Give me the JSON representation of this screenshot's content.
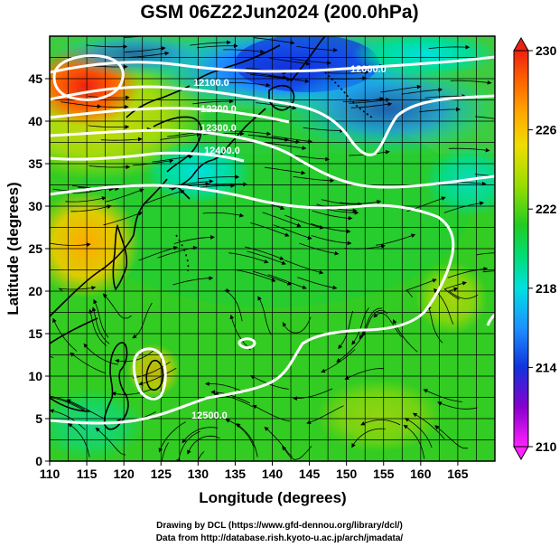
{
  "title": "GSM 06Z22Jun2024 (200.0hPa)",
  "x_axis": {
    "label": "Longitude (degrees)",
    "ticks": [
      "110",
      "115",
      "120",
      "125",
      "130",
      "135",
      "140",
      "145",
      "150",
      "155",
      "160",
      "165"
    ],
    "range": [
      110,
      170
    ]
  },
  "y_axis": {
    "label": "Latitude (degrees)",
    "ticks": [
      "0",
      "5",
      "10",
      "15",
      "20",
      "25",
      "30",
      "35",
      "40",
      "45"
    ],
    "range": [
      0,
      50
    ]
  },
  "colorbar": {
    "ticks": [
      "210",
      "214",
      "218",
      "222",
      "226",
      "230"
    ],
    "range": [
      210,
      230
    ],
    "colors": [
      "#ff22ff",
      "#8800cc",
      "#1133dd",
      "#1e90ff",
      "#00e0e0",
      "#00dd77",
      "#22cc22",
      "#99dd00",
      "#eedd00",
      "#ffaa00",
      "#ff6600",
      "#ee2211"
    ]
  },
  "contour_labels": [
    "12000.0",
    "12100.0",
    "12200.0",
    "12300.0",
    "12400.0",
    "12500.0"
  ],
  "credits": {
    "line1": "Drawing by DCL (https://www.gfd-dennou.org/library/dcl/)",
    "line2": "Data from http://database.rish.kyoto-u.ac.jp/arch/jmadata/"
  }
}
